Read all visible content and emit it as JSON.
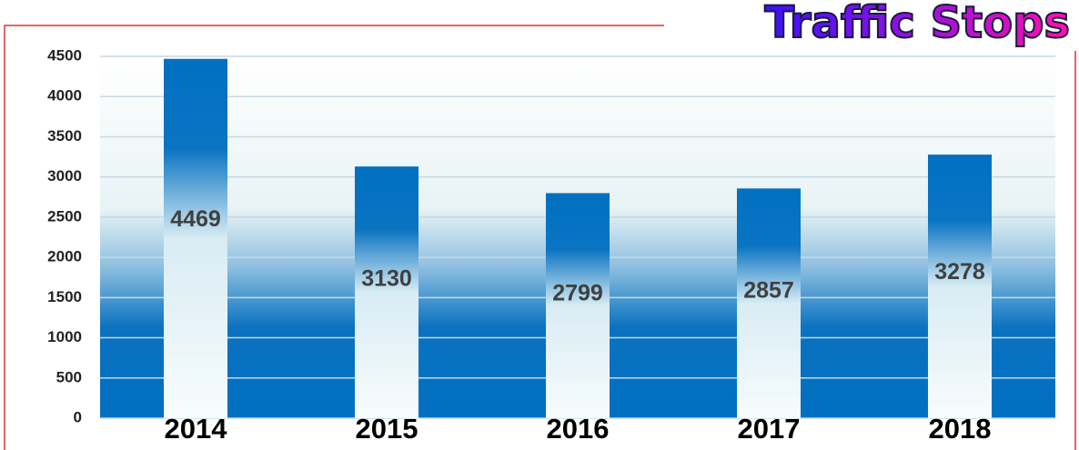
{
  "chart_data": {
    "type": "bar",
    "title": "Traffic Stops",
    "categories": [
      "2014",
      "2015",
      "2016",
      "2017",
      "2018"
    ],
    "values": [
      4469,
      3130,
      2799,
      2857,
      3278
    ],
    "color": "#0070c0",
    "ylim": [
      0,
      4500
    ],
    "yticks": [
      0,
      500,
      1000,
      1500,
      2000,
      2500,
      3000,
      3500,
      4000,
      4500
    ],
    "grid": true
  }
}
